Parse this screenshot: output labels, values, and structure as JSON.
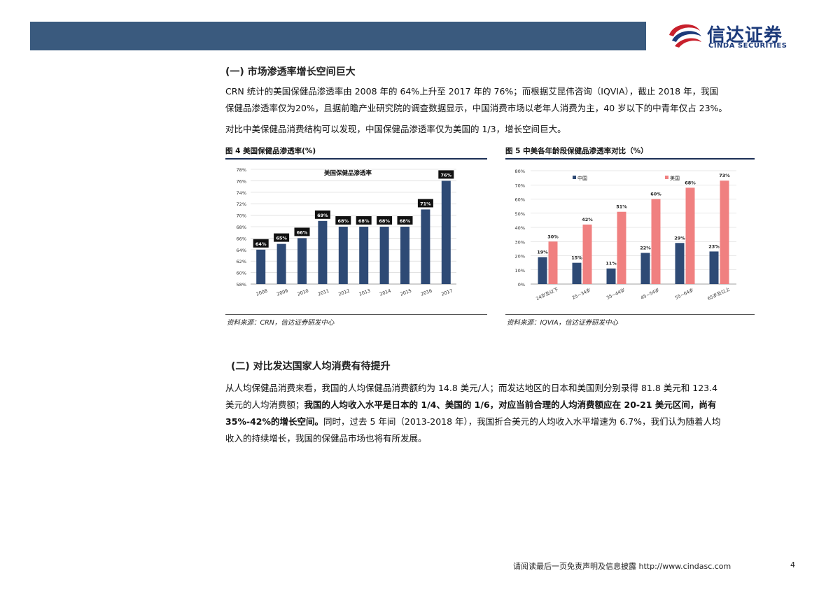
{
  "header": {
    "logo_cn": "信达证券",
    "logo_en": "CINDA SECURITIES"
  },
  "section1": {
    "title": "(一) 市场渗透率增长空间巨大",
    "para1_line1": "CRN 统计的美国保健品渗透率由 2008 年的 64%上升至 2017 年的 76%；而根据艾昆伟咨询（IQVIA），截止 2018 年，我国",
    "para1_line2": "保健品渗透率仅为20%，且据前瞻产业研究院的调查数据显示，中国消费市场以老年人消费为主，40 岁以下的中青年仅占 23%。",
    "para2": "对比中美保健品消费结构可以发现，中国保健品渗透率仅为美国的 1/3，增长空间巨大。"
  },
  "figure4": {
    "title": "图 4 美国保健品渗透率(%)",
    "source": "资料来源：CRN，信达证券研发中心"
  },
  "figure5": {
    "title": "图 5 中美各年龄段保健品渗透率对比（%）",
    "source": "资料来源：IQVIA，信达证券研发中心"
  },
  "chart_data": [
    {
      "type": "bar",
      "title": "美国保健品渗透率",
      "categories": [
        "2008",
        "2009",
        "2010",
        "2011",
        "2012",
        "2013",
        "2014",
        "2015",
        "2016",
        "2017"
      ],
      "values": [
        64,
        65,
        66,
        69,
        68,
        68,
        68,
        68,
        71,
        76
      ],
      "data_labels": [
        "64%",
        "65%",
        "66%",
        "69%",
        "68%",
        "68%",
        "68%",
        "68%",
        "71%",
        "76%"
      ],
      "ylim": [
        58,
        78
      ],
      "yticks": [
        "58%",
        "60%",
        "62%",
        "64%",
        "66%",
        "68%",
        "70%",
        "72%",
        "74%",
        "76%",
        "78%"
      ],
      "colors": {
        "bar": "#2e4a75"
      },
      "grid": true
    },
    {
      "type": "bar",
      "categories": [
        "24岁及以下",
        "25~34岁",
        "35~44岁",
        "45~54岁",
        "55~64岁",
        "65岁及以上"
      ],
      "series": [
        {
          "name": "中国",
          "values": [
            19,
            15,
            11,
            22,
            29,
            23
          ],
          "labels": [
            "19%",
            "15%",
            "11%",
            "22%",
            "29%",
            "23%"
          ],
          "color": "#2e4a75"
        },
        {
          "name": "美国",
          "values": [
            30,
            42,
            51,
            60,
            68,
            73
          ],
          "labels": [
            "30%",
            "42%",
            "51%",
            "60%",
            "68%",
            "73%"
          ],
          "color": "#f08080"
        }
      ],
      "ylim": [
        0,
        80
      ],
      "yticks": [
        "0%",
        "10%",
        "20%",
        "30%",
        "40%",
        "50%",
        "60%",
        "70%",
        "80%"
      ],
      "legend": "top",
      "grid": true
    }
  ],
  "section2": {
    "title": "(二) 对比发达国家人均消费有待提升",
    "line1": "从人均保健品消费来看，我国的人均保健品消费额约为 14.8 美元/人；而发达地区的日本和美国则分别录得 81.8 美元和 123.4",
    "line2_normal": "美元的人均消费额；",
    "line2_bold": "我国的人均收入水平是日本的 1/4、美国的 1/6，对应当前合理的人均消费额应在 20-21 美元区间，尚有",
    "line3_bold": "35%-42%的增长空间。",
    "line3_normal": "同时，过去 5 年间（2013-2018 年），我国折合美元的人均收入水平增速为 6.7%，我们认为随着人均",
    "line4": "收入的持续增长，我国的保健品市场也将有所发展。"
  },
  "footer": {
    "disclaimer": "请阅读最后一页免责声明及信息披露 http://www.cindasc.com",
    "page": "4"
  }
}
